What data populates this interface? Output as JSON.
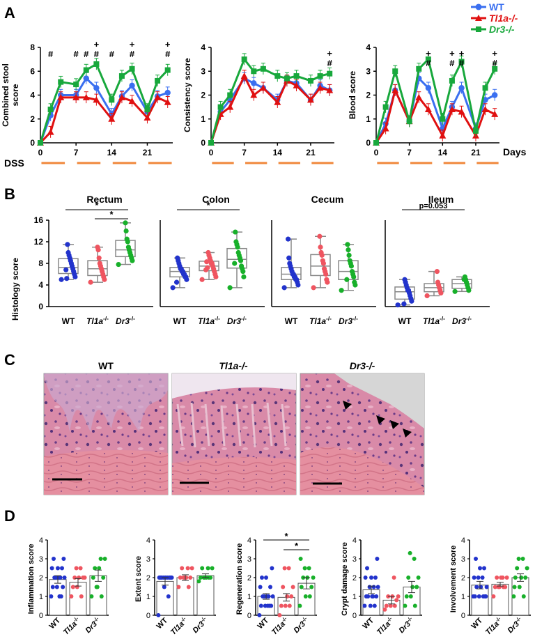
{
  "panel_labels": {
    "a": "A",
    "b": "B",
    "c": "C",
    "d": "D"
  },
  "panel_a": {
    "legend": [
      {
        "label": "WT",
        "color": "#3a6ff0"
      },
      {
        "label": "Tl1a-/-",
        "color": "#e01010"
      },
      {
        "label": "Dr3-/-",
        "color": "#18a83c"
      }
    ],
    "days_label": "Days",
    "dss_label": "DSS",
    "x_ticks": [
      "0",
      "7",
      "14",
      "21"
    ],
    "charts": [
      {
        "ylabel": "Combined stool score",
        "yticks": [
          "0",
          "2",
          "4",
          "6",
          "8"
        ],
        "ymax": 8,
        "sig": [
          {
            "t": 2,
            "m": "#"
          },
          {
            "t": 7,
            "m": "#"
          },
          {
            "t": 9,
            "m": "#"
          },
          {
            "t": 11,
            "m": "+"
          },
          {
            "t": 11,
            "m": "#"
          },
          {
            "t": 14,
            "m": "#"
          },
          {
            "t": 18,
            "m": "+"
          },
          {
            "t": 18,
            "m": "#"
          },
          {
            "t": 25,
            "m": "+"
          },
          {
            "t": 25,
            "m": "#"
          }
        ]
      },
      {
        "ylabel": "Consistency score",
        "yticks": [
          "0",
          "1",
          "2",
          "3",
          "4"
        ],
        "ymax": 4,
        "sig": [
          {
            "t": 25,
            "m": "+"
          },
          {
            "t": 25,
            "m": "#"
          }
        ]
      },
      {
        "ylabel": "Blood score",
        "yticks": [
          "0",
          "1",
          "2",
          "3",
          "4"
        ],
        "ymax": 4,
        "sig": [
          {
            "t": 11,
            "m": "+"
          },
          {
            "t": 11,
            "m": "#"
          },
          {
            "t": 16,
            "m": "+"
          },
          {
            "t": 16,
            "m": "#"
          },
          {
            "t": 18,
            "m": "+"
          },
          {
            "t": 18,
            "m": "#"
          },
          {
            "t": 25,
            "m": "+"
          },
          {
            "t": 25,
            "m": "#"
          }
        ]
      }
    ]
  },
  "panel_b": {
    "ylabel": "Histology score",
    "yticks": [
      "0",
      "4",
      "8",
      "12",
      "16"
    ],
    "group_labels": [
      "WT",
      "Tl1a-/-",
      "Dr3-/-"
    ],
    "tissues": [
      {
        "title": "Rectum",
        "brackets": [
          {
            "from": 0,
            "to": 2,
            "label": "*"
          },
          {
            "from": 1,
            "to": 2,
            "label": "*"
          }
        ]
      },
      {
        "title": "Colon",
        "brackets": [
          {
            "from": 0,
            "to": 2,
            "label": "*"
          }
        ]
      },
      {
        "title": "Cecum",
        "brackets": []
      },
      {
        "title": "Ileum",
        "brackets": [
          {
            "from": 0,
            "to": 2,
            "label": "p=0.053"
          }
        ]
      }
    ]
  },
  "panel_c": {
    "titles": [
      "WT",
      "Tl1a-/-",
      "Dr3-/-"
    ]
  },
  "panel_d": {
    "group_labels": [
      "WT",
      "Tl1a-/-",
      "Dr3-/-"
    ],
    "yticks": [
      "0",
      "1",
      "2",
      "3",
      "4"
    ],
    "charts": [
      {
        "ylabel": "Inflammation score",
        "brackets": []
      },
      {
        "ylabel": "Extent score",
        "brackets": []
      },
      {
        "ylabel": "Regeneration score",
        "brackets": [
          {
            "from": 0,
            "to": 2,
            "label": "*"
          },
          {
            "from": 1,
            "to": 2,
            "label": "*"
          }
        ]
      },
      {
        "ylabel": "Crypt damage score",
        "brackets": []
      },
      {
        "ylabel": "Involvement score",
        "brackets": []
      }
    ]
  },
  "chart_data": [
    {
      "type": "line",
      "ylabel": "Combined stool score",
      "xlabel": "Days",
      "ylim": [
        0,
        8
      ],
      "x": [
        0,
        2,
        4,
        7,
        9,
        11,
        14,
        16,
        18,
        21,
        23,
        25
      ],
      "series": [
        {
          "name": "WT",
          "values": [
            0,
            2.3,
            4.0,
            4.0,
            5.4,
            4.6,
            2.4,
            3.9,
            4.8,
            2.6,
            3.9,
            4.2
          ]
        },
        {
          "name": "Tl1a-/-",
          "values": [
            0,
            0.9,
            3.8,
            3.8,
            3.8,
            3.6,
            2.0,
            3.8,
            3.5,
            2.1,
            3.8,
            3.4
          ]
        },
        {
          "name": "Dr3-/-",
          "values": [
            0,
            2.8,
            5.1,
            4.9,
            6.1,
            6.6,
            3.6,
            5.6,
            6.2,
            2.8,
            5.2,
            6.1
          ]
        }
      ]
    },
    {
      "type": "line",
      "ylabel": "Consistency score",
      "xlabel": "Days",
      "ylim": [
        0,
        4
      ],
      "x": [
        0,
        2,
        4,
        7,
        9,
        11,
        14,
        16,
        18,
        21,
        23,
        25
      ],
      "series": [
        {
          "name": "WT",
          "values": [
            0,
            1.3,
            1.8,
            2.7,
            2.5,
            2.3,
            1.8,
            2.6,
            2.5,
            1.8,
            2.4,
            2.2
          ]
        },
        {
          "name": "Tl1a-/-",
          "values": [
            0,
            1.2,
            1.5,
            2.8,
            2.0,
            2.3,
            1.7,
            2.6,
            2.4,
            1.8,
            2.3,
            2.2
          ]
        },
        {
          "name": "Dr3-/-",
          "values": [
            0,
            1.5,
            2.0,
            3.5,
            3.0,
            3.1,
            2.8,
            2.7,
            2.8,
            2.6,
            2.8,
            2.9
          ]
        }
      ]
    },
    {
      "type": "line",
      "ylabel": "Blood score",
      "xlabel": "Days",
      "ylim": [
        0,
        4
      ],
      "x": [
        0,
        2,
        4,
        7,
        9,
        11,
        14,
        16,
        18,
        21,
        23,
        25
      ],
      "series": [
        {
          "name": "WT",
          "values": [
            0,
            0.8,
            2.2,
            0.9,
            2.7,
            2.3,
            0.6,
            1.5,
            2.3,
            0.6,
            1.8,
            2.0
          ]
        },
        {
          "name": "Tl1a-/-",
          "values": [
            0,
            0.6,
            2.2,
            0.9,
            1.9,
            1.4,
            0.3,
            1.4,
            1.3,
            0.3,
            1.4,
            1.2
          ]
        },
        {
          "name": "Dr3-/-",
          "values": [
            0,
            1.5,
            3.0,
            0.9,
            3.1,
            3.5,
            1.0,
            2.6,
            3.4,
            0.5,
            2.3,
            3.1
          ]
        }
      ]
    },
    {
      "type": "box",
      "title": "Rectum",
      "ylabel": "Histology score",
      "ylim": [
        0,
        16
      ],
      "categories": [
        "WT",
        "Tl1a-/-",
        "Dr3-/-"
      ],
      "series": [
        {
          "name": "WT",
          "values": [
            5.0,
            5.5,
            6.0,
            6.5,
            7.0,
            7.5,
            8.0,
            8.5,
            9.0,
            9.5,
            10.0,
            11.5,
            5.2,
            6.8
          ]
        },
        {
          "name": "Tl1a-/-",
          "values": [
            4.5,
            5.0,
            5.5,
            6.0,
            6.5,
            7.0,
            7.5,
            8.0,
            9.0,
            10.5,
            11.0
          ]
        },
        {
          "name": "Dr3-/-",
          "values": [
            7.8,
            8.5,
            9.0,
            9.5,
            10.0,
            10.5,
            11.0,
            12.0,
            12.5,
            14.0,
            15.5
          ]
        }
      ]
    },
    {
      "type": "box",
      "title": "Colon",
      "ylabel": "Histology score",
      "ylim": [
        0,
        16
      ],
      "categories": [
        "WT",
        "Tl1a-/-",
        "Dr3-/-"
      ],
      "series": [
        {
          "name": "WT",
          "values": [
            3.5,
            5.0,
            5.5,
            5.5,
            6.0,
            6.0,
            6.5,
            6.5,
            7.0,
            7.0,
            7.5,
            8.0,
            8.5,
            9.0,
            4.5
          ]
        },
        {
          "name": "Tl1a-/-",
          "values": [
            5.0,
            5.5,
            6.0,
            6.5,
            7.0,
            7.5,
            8.0,
            8.0,
            8.5,
            9.0,
            9.5,
            10.0,
            7.2,
            8.3,
            6.8
          ]
        },
        {
          "name": "Dr3-/-",
          "values": [
            3.5,
            5.5,
            6.5,
            7.0,
            7.5,
            8.5,
            9.0,
            9.5,
            10.0,
            11.0,
            11.5,
            12.0,
            13.8,
            8.0
          ]
        }
      ]
    },
    {
      "type": "box",
      "title": "Cecum",
      "ylabel": "Histology score",
      "ylim": [
        0,
        16
      ],
      "categories": [
        "WT",
        "Tl1a-/-",
        "Dr3-/-"
      ],
      "series": [
        {
          "name": "WT",
          "values": [
            3.5,
            4.0,
            4.5,
            5.0,
            5.0,
            5.5,
            5.5,
            6.0,
            6.0,
            6.5,
            7.0,
            7.5,
            8.0,
            9.0,
            12.5
          ]
        },
        {
          "name": "Tl1a-/-",
          "values": [
            3.5,
            4.5,
            5.0,
            6.0,
            6.5,
            7.0,
            8.0,
            8.5,
            9.5,
            10.0,
            11.0,
            13.0
          ]
        },
        {
          "name": "Dr3-/-",
          "values": [
            3.0,
            4.0,
            4.5,
            5.5,
            6.0,
            6.5,
            7.5,
            8.0,
            8.5,
            9.5,
            10.5,
            11.5,
            5.0
          ]
        }
      ]
    },
    {
      "type": "box",
      "title": "Ileum",
      "ylabel": "Histology score",
      "ylim": [
        0,
        16
      ],
      "categories": [
        "WT",
        "Tl1a-/-",
        "Dr3-/-"
      ],
      "series": [
        {
          "name": "WT",
          "values": [
            0.3,
            1.0,
            1.5,
            2.0,
            2.5,
            3.0,
            3.0,
            3.5,
            4.0,
            4.5,
            5.0,
            0.5
          ]
        },
        {
          "name": "Tl1a-/-",
          "values": [
            2.0,
            2.5,
            3.0,
            3.5,
            4.0,
            4.5,
            6.5
          ]
        },
        {
          "name": "Dr3-/-",
          "values": [
            2.8,
            3.0,
            3.5,
            4.0,
            4.5,
            5.0,
            5.5,
            5.0
          ]
        }
      ]
    },
    {
      "type": "bar",
      "ylabel": "Inflammation score",
      "ylim": [
        0,
        4
      ],
      "categories": [
        "WT",
        "Tl1a-/-",
        "Dr3-/-"
      ],
      "values": [
        1.9,
        1.75,
        2.1
      ],
      "errors": [
        0.2,
        0.2,
        0.3
      ],
      "points": [
        [
          1.0,
          1.0,
          1.5,
          1.5,
          1.5,
          2.0,
          2.0,
          2.0,
          2.0,
          2.0,
          2.5,
          2.5,
          2.5,
          3.0,
          3.0,
          1.0
        ],
        [
          1.0,
          1.0,
          1.5,
          1.5,
          2.0,
          2.0,
          2.0,
          2.0,
          2.5,
          2.5
        ],
        [
          1.0,
          1.0,
          1.5,
          2.0,
          2.0,
          2.5,
          2.5,
          3.0,
          3.0,
          1.5
        ]
      ]
    },
    {
      "type": "bar",
      "ylabel": "Extent score",
      "ylim": [
        0,
        4
      ],
      "categories": [
        "WT",
        "Tl1a-/-",
        "Dr3-/-"
      ],
      "values": [
        1.8,
        2.0,
        2.1
      ],
      "errors": [
        0.2,
        0.15,
        0.1
      ],
      "points": [
        [
          0,
          1.0,
          1.5,
          2.0,
          2.0,
          2.0,
          2.0,
          2.0,
          2.0,
          2.0,
          2.0,
          2.0,
          2.0,
          2.0,
          2.0
        ],
        [
          1.5,
          1.5,
          2.0,
          2.0,
          2.0,
          2.0,
          2.5,
          2.5,
          2.5,
          2.0
        ],
        [
          1.8,
          2.0,
          2.0,
          2.0,
          2.0,
          2.0,
          2.5,
          2.5,
          2.5,
          2.0
        ]
      ]
    },
    {
      "type": "bar",
      "ylabel": "Regeneration score",
      "ylim": [
        0,
        4
      ],
      "categories": [
        "WT",
        "Tl1a-/-",
        "Dr3-/-"
      ],
      "values": [
        1.0,
        0.95,
        1.7
      ],
      "errors": [
        0.15,
        0.2,
        0.3
      ],
      "points": [
        [
          0,
          0.5,
          0.5,
          0.5,
          0.5,
          1.0,
          1.0,
          1.0,
          1.0,
          1.0,
          1.5,
          1.5,
          2.0,
          2.0,
          2.5,
          0.5
        ],
        [
          0,
          0.5,
          0.5,
          0.5,
          1.0,
          1.0,
          1.5,
          1.5,
          2.5,
          2.5
        ],
        [
          0.5,
          1.0,
          1.0,
          1.5,
          1.5,
          2.0,
          2.0,
          2.0,
          2.5,
          2.5,
          3.0
        ]
      ]
    },
    {
      "type": "bar",
      "ylabel": "Crypt damage score",
      "ylim": [
        0,
        4
      ],
      "categories": [
        "WT",
        "Tl1a-/-",
        "Dr3-/-"
      ],
      "values": [
        1.35,
        0.8,
        1.5
      ],
      "errors": [
        0.2,
        0.2,
        0.3
      ],
      "points": [
        [
          0.5,
          0.5,
          0.5,
          1.0,
          1.0,
          1.0,
          1.0,
          1.5,
          1.5,
          1.5,
          2.0,
          2.0,
          2.0,
          2.5,
          3.0,
          1.0
        ],
        [
          0.3,
          0.5,
          0.5,
          0.5,
          0.8,
          1.0,
          1.0,
          1.0,
          2.0
        ],
        [
          0.5,
          0.5,
          1.0,
          1.0,
          1.5,
          1.5,
          2.0,
          2.0,
          3.0,
          3.3
        ]
      ]
    },
    {
      "type": "bar",
      "ylabel": "Involvement score",
      "ylim": [
        0,
        4
      ],
      "categories": [
        "WT",
        "Tl1a-/-",
        "Dr3-/-"
      ],
      "values": [
        1.6,
        1.65,
        2.0
      ],
      "errors": [
        0.2,
        0.1,
        0.2
      ],
      "points": [
        [
          1.0,
          1.0,
          1.0,
          1.0,
          1.0,
          1.5,
          1.5,
          1.5,
          2.0,
          2.0,
          2.0,
          2.5,
          2.5,
          3.0,
          1.0
        ],
        [
          1.0,
          1.5,
          1.5,
          1.5,
          1.5,
          2.0,
          2.0,
          2.0,
          2.0,
          1.5
        ],
        [
          1.0,
          1.0,
          1.5,
          2.0,
          2.0,
          2.0,
          2.5,
          2.5,
          3.0,
          3.0,
          1.5
        ]
      ]
    }
  ]
}
